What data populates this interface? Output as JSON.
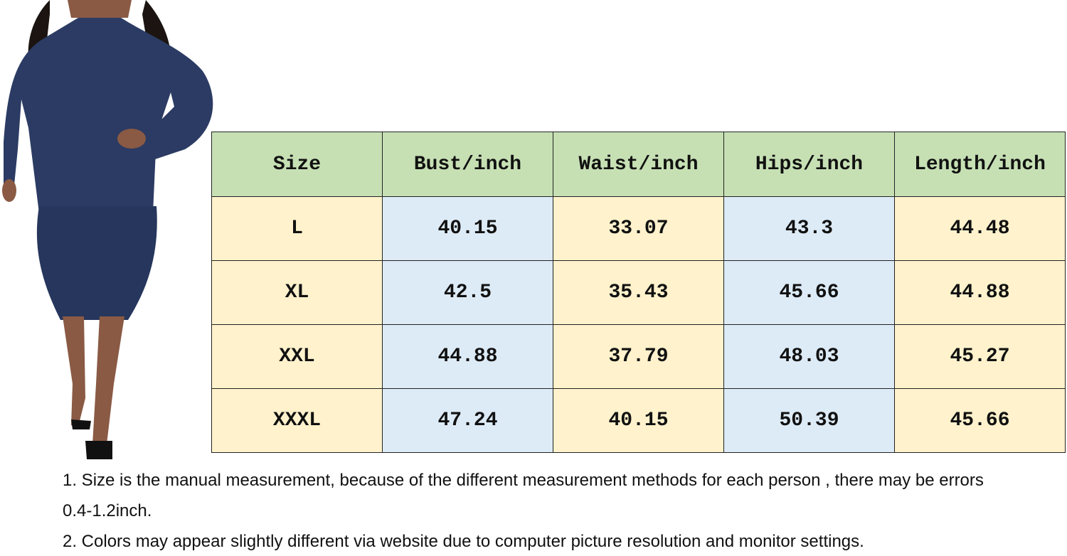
{
  "table": {
    "header": [
      "Size",
      "Bust/inch",
      "Waist/inch",
      "Hips/inch",
      "Length/inch"
    ],
    "rows": [
      [
        "L",
        "40.15",
        "33.07",
        "43.3",
        "44.48"
      ],
      [
        "XL",
        "42.5",
        "35.43",
        "45.66",
        "44.88"
      ],
      [
        "XXL",
        "44.88",
        "37.79",
        "48.03",
        "45.27"
      ],
      [
        "XXXL",
        "47.24",
        "40.15",
        "50.39",
        "45.66"
      ]
    ]
  },
  "notes": [
    "1.  Size is the manual measurement, because of the different measurement methods for each person , there may be errors 0.4-1.2inch.",
    "2.  Colors may appear slightly different via website due to computer picture resolution and monitor settings."
  ]
}
